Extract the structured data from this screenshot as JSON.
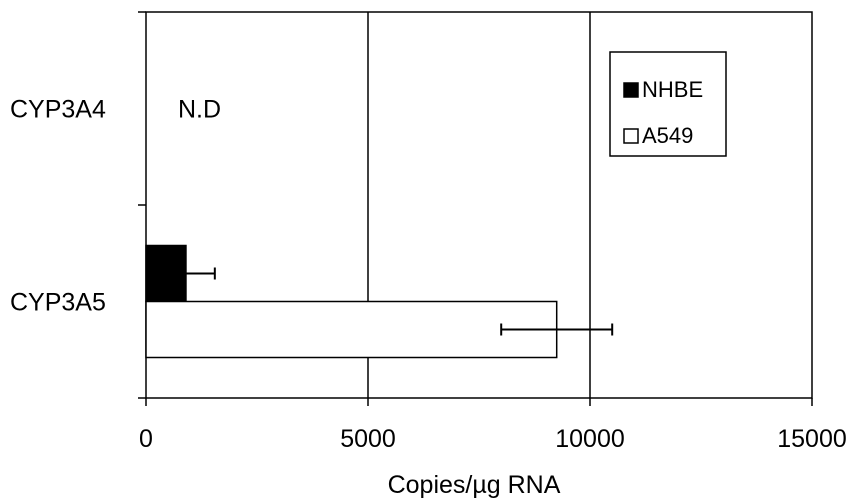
{
  "chart_data": {
    "type": "bar",
    "orientation": "horizontal",
    "categories": [
      "CYP3A4",
      "CYP3A5"
    ],
    "series": [
      {
        "name": "NHBE",
        "color": "#000000",
        "values": [
          null,
          900
        ],
        "error": [
          null,
          650
        ]
      },
      {
        "name": "A549",
        "color": "#ffffff",
        "values": [
          null,
          9250
        ],
        "error": [
          null,
          1250
        ]
      }
    ],
    "xlabel": "Copies/µg RNA",
    "ylabel": "",
    "title": "",
    "xlim": [
      0,
      15000
    ],
    "xticks": [
      "0",
      "5000",
      "10000",
      "15000"
    ],
    "grid": true,
    "legend": "top-right",
    "annotations": [
      {
        "text": "N.D",
        "category": "CYP3A4"
      }
    ]
  }
}
